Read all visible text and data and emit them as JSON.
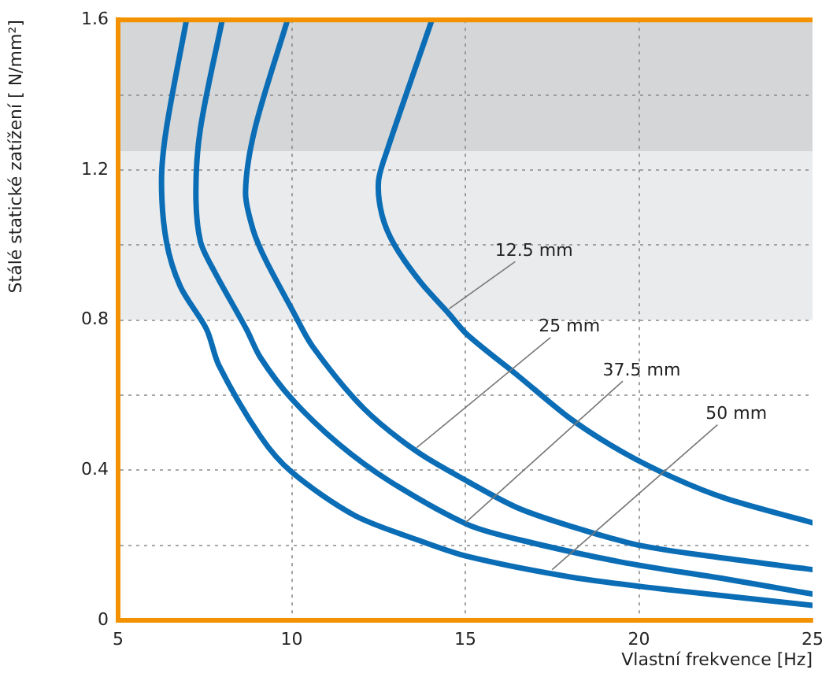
{
  "chart_data": {
    "type": "line",
    "xlabel": "Vlastní frekvence [Hz]",
    "ylabel": "Stálé statické zatížení [ N/mm²]",
    "series": [
      {
        "color": "#0a6db5",
        "x": [
          14.04,
          12.74,
          12.5,
          12.6,
          12.96,
          13.72,
          14.5,
          15.07,
          16.54,
          18.06,
          19.5,
          21.0,
          22.5,
          25
        ],
        "values": [
          1.6,
          1.25,
          1.17,
          1.08,
          1.0,
          0.9,
          0.82,
          0.76,
          0.65,
          0.535,
          0.45,
          0.38,
          0.325,
          0.26
        ]
      },
      {
        "color": "#0a6db5",
        "x": [
          9.88,
          8.94,
          8.67,
          8.89,
          9.25,
          10.0,
          10.6,
          12.07,
          13.6,
          15.07,
          16.5,
          18.06,
          20,
          22.5,
          25
        ],
        "values": [
          1.6,
          1.31,
          1.14,
          1.04,
          0.96,
          0.83,
          0.73,
          0.565,
          0.45,
          0.37,
          0.3,
          0.25,
          0.2,
          0.165,
          0.135
        ]
      },
      {
        "color": "#0a6db5",
        "x": [
          8.0,
          7.37,
          7.24,
          7.37,
          7.77,
          8.7,
          9.1,
          10.0,
          11.35,
          12.83,
          15.07,
          16.54,
          19.5,
          22.5,
          25
        ],
        "values": [
          1.6,
          1.31,
          1.14,
          1.01,
          0.93,
          0.775,
          0.7,
          0.59,
          0.47,
          0.37,
          0.255,
          0.215,
          0.155,
          0.11,
          0.07
        ]
      },
      {
        "color": "#0a6db5",
        "x": [
          6.97,
          6.39,
          6.25,
          6.39,
          6.79,
          7.55,
          7.9,
          9.1,
          10.0,
          11.8,
          13.6,
          15.07,
          18.06,
          21.0,
          25
        ],
        "values": [
          1.6,
          1.31,
          1.17,
          1.01,
          0.89,
          0.775,
          0.68,
          0.49,
          0.395,
          0.28,
          0.215,
          0.17,
          0.115,
          0.08,
          0.04
        ]
      }
    ],
    "annotations": [
      {
        "text": "12.5 mm",
        "x": 14.53,
        "y": 0.83
      },
      {
        "text": "25 mm",
        "x": 13.6,
        "y": 0.46
      },
      {
        "text": "37.5 mm",
        "x": 15.0,
        "y": 0.26
      },
      {
        "text": "50 mm",
        "x": 17.5,
        "y": 0.135
      }
    ],
    "bands": [
      {
        "axis": "y",
        "from": 1.25,
        "to": 1.6,
        "color": "#d5d6d8"
      },
      {
        "axis": "y",
        "from": 0.8,
        "to": 1.25,
        "color": "#eaebed"
      }
    ],
    "xlim": [
      5,
      25
    ],
    "xticks": [
      5,
      10,
      15,
      20,
      25
    ],
    "ylim": [
      0,
      1.6
    ],
    "yticks": [
      0,
      {
        "value": 0.2,
        "label": null
      },
      0.4,
      {
        "value": 0.6,
        "label": null
      },
      0.8,
      {
        "value": 1.0,
        "label": null
      },
      1.2,
      {
        "value": 1.4,
        "label": null
      },
      1.6
    ],
    "grid": true,
    "marker": "none",
    "line_style": "solid"
  }
}
